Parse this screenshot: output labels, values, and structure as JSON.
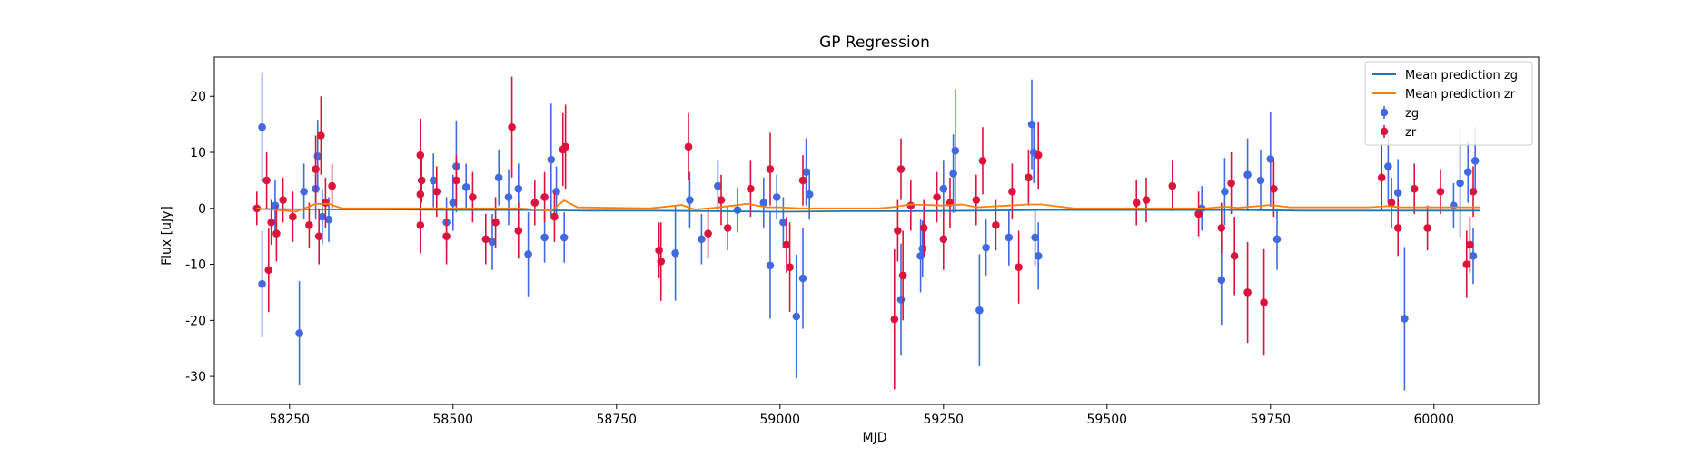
{
  "chart_data": {
    "type": "scatter",
    "title": "GP Regression",
    "xlabel": "MJD",
    "ylabel": "Flux [uJy]",
    "xlim": [
      58135,
      60160
    ],
    "ylim": [
      -35,
      27
    ],
    "x_ticks": [
      58250,
      58500,
      58750,
      59000,
      59250,
      59500,
      59750,
      60000
    ],
    "y_ticks": [
      -30,
      -20,
      -10,
      0,
      10,
      20
    ],
    "grid": false,
    "legend_position": "top-right",
    "series": [
      {
        "name": "Mean prediction zg",
        "kind": "line",
        "color": "#1f77b4",
        "x": [
          58200,
          58300,
          58400,
          58500,
          58600,
          58700,
          58800,
          58900,
          59000,
          59100,
          59200,
          59300,
          59400,
          59500,
          59600,
          59700,
          59800,
          59900,
          60000,
          60070
        ],
        "y": [
          -0.1,
          -0.2,
          -0.2,
          -0.3,
          -0.3,
          -0.4,
          -0.4,
          -0.5,
          -0.6,
          -0.5,
          -0.5,
          -0.4,
          -0.3,
          -0.3,
          -0.3,
          -0.3,
          -0.4,
          -0.4,
          -0.4,
          -0.4
        ]
      },
      {
        "name": "Mean prediction zr",
        "kind": "line",
        "color": "#ff7f0e",
        "x": [
          58200,
          58230,
          58260,
          58290,
          58310,
          58330,
          58400,
          58450,
          58500,
          58550,
          58600,
          58650,
          58670,
          58690,
          58800,
          58850,
          58870,
          58900,
          58950,
          58980,
          59000,
          59030,
          59050,
          59100,
          59150,
          59170,
          59200,
          59250,
          59280,
          59300,
          59350,
          59380,
          59400,
          59450,
          59500,
          59550,
          59600,
          59650,
          59680,
          59700,
          59750,
          59780,
          59800,
          59900,
          59930,
          59950,
          60000,
          60050,
          60070
        ],
        "y": [
          0.0,
          -0.3,
          -0.6,
          0.8,
          0.8,
          0.0,
          0.0,
          0.0,
          0.0,
          0.0,
          0.0,
          -0.4,
          1.4,
          0.2,
          0.0,
          0.6,
          -0.2,
          0.1,
          0.8,
          0.2,
          0.2,
          0.0,
          0.0,
          0.0,
          0.0,
          0.2,
          0.7,
          0.5,
          0.7,
          0.2,
          0.5,
          0.7,
          0.7,
          0.0,
          0.0,
          0.0,
          0.0,
          0.0,
          0.3,
          0.1,
          0.6,
          0.2,
          0.2,
          0.2,
          0.4,
          0.2,
          0.2,
          0.2,
          0.2
        ]
      },
      {
        "name": "zg",
        "kind": "errorbar",
        "color": "#4169e1",
        "points": [
          {
            "x": 58208,
            "y": 14.5,
            "err": 9.8
          },
          {
            "x": 58208,
            "y": -13.5,
            "err": 9.5
          },
          {
            "x": 58228,
            "y": 0.5,
            "err": 4.5
          },
          {
            "x": 58265,
            "y": -22.3,
            "err": 9.3
          },
          {
            "x": 58272,
            "y": 3.0,
            "err": 5.0
          },
          {
            "x": 58290,
            "y": 3.5,
            "err": 5.5
          },
          {
            "x": 58293,
            "y": 9.3,
            "err": 6.5
          },
          {
            "x": 58300,
            "y": -1.5,
            "err": 5.0
          },
          {
            "x": 58310,
            "y": -2.0,
            "err": 4.0
          },
          {
            "x": 58470,
            "y": 5.0,
            "err": 4.8
          },
          {
            "x": 58490,
            "y": -2.5,
            "err": 4.5
          },
          {
            "x": 58500,
            "y": 1.0,
            "err": 5.0
          },
          {
            "x": 58505,
            "y": 7.5,
            "err": 8.2
          },
          {
            "x": 58520,
            "y": 3.8,
            "err": 4.2
          },
          {
            "x": 58560,
            "y": -6.0,
            "err": 5.0
          },
          {
            "x": 58570,
            "y": 5.5,
            "err": 5.0
          },
          {
            "x": 58585,
            "y": 2.0,
            "err": 5.0
          },
          {
            "x": 58600,
            "y": 3.5,
            "err": 4.5
          },
          {
            "x": 58615,
            "y": -8.2,
            "err": 7.5
          },
          {
            "x": 58640,
            "y": -5.2,
            "err": 4.5
          },
          {
            "x": 58650,
            "y": 8.7,
            "err": 10.0
          },
          {
            "x": 58658,
            "y": 3.0,
            "err": 4.5
          },
          {
            "x": 58670,
            "y": -5.2,
            "err": 4.5
          },
          {
            "x": 58840,
            "y": -8.0,
            "err": 8.5
          },
          {
            "x": 58862,
            "y": 1.5,
            "err": 5.0
          },
          {
            "x": 58880,
            "y": -5.5,
            "err": 4.5
          },
          {
            "x": 58905,
            "y": 4.0,
            "err": 4.5
          },
          {
            "x": 58935,
            "y": -0.3,
            "err": 4.0
          },
          {
            "x": 58975,
            "y": 1.0,
            "err": 4.5
          },
          {
            "x": 58985,
            "y": -10.2,
            "err": 9.5
          },
          {
            "x": 58995,
            "y": 2.0,
            "err": 4.0
          },
          {
            "x": 59005,
            "y": -2.5,
            "err": 4.5
          },
          {
            "x": 59025,
            "y": -19.3,
            "err": 11.0
          },
          {
            "x": 59035,
            "y": -12.5,
            "err": 9.0
          },
          {
            "x": 59040,
            "y": 6.5,
            "err": 6.0
          },
          {
            "x": 59045,
            "y": 2.5,
            "err": 4.5
          },
          {
            "x": 59185,
            "y": -16.3,
            "err": 10.0
          },
          {
            "x": 59215,
            "y": -8.5,
            "err": 6.5
          },
          {
            "x": 59218,
            "y": -7.2,
            "err": 5.0
          },
          {
            "x": 59250,
            "y": 3.5,
            "err": 5.0
          },
          {
            "x": 59265,
            "y": 6.2,
            "err": 7.0
          },
          {
            "x": 59268,
            "y": 10.3,
            "err": 11.0
          },
          {
            "x": 59305,
            "y": -18.2,
            "err": 10.0
          },
          {
            "x": 59315,
            "y": -7.0,
            "err": 5.0
          },
          {
            "x": 59350,
            "y": -5.2,
            "err": 5.0
          },
          {
            "x": 59385,
            "y": 15.0,
            "err": 8.0
          },
          {
            "x": 59388,
            "y": 10.0,
            "err": 5.5
          },
          {
            "x": 59390,
            "y": -5.2,
            "err": 5.0
          },
          {
            "x": 59395,
            "y": -8.5,
            "err": 6.0
          },
          {
            "x": 59645,
            "y": 0.0,
            "err": 4.0
          },
          {
            "x": 59675,
            "y": -12.8,
            "err": 8.0
          },
          {
            "x": 59680,
            "y": 3.0,
            "err": 6.0
          },
          {
            "x": 59715,
            "y": 6.0,
            "err": 6.5
          },
          {
            "x": 59735,
            "y": 5.0,
            "err": 5.5
          },
          {
            "x": 59750,
            "y": 8.8,
            "err": 8.5
          },
          {
            "x": 59760,
            "y": -5.5,
            "err": 5.5
          },
          {
            "x": 59930,
            "y": 7.5,
            "err": 6.5
          },
          {
            "x": 59945,
            "y": 2.8,
            "err": 6.0
          },
          {
            "x": 59955,
            "y": -19.7,
            "err": 12.8
          },
          {
            "x": 60030,
            "y": 0.5,
            "err": 4.0
          },
          {
            "x": 60040,
            "y": 4.5,
            "err": 9.8
          },
          {
            "x": 60052,
            "y": 6.5,
            "err": 5.5
          },
          {
            "x": 60063,
            "y": 8.5,
            "err": 6.0
          },
          {
            "x": 60060,
            "y": -8.5,
            "err": 5.0
          }
        ]
      },
      {
        "name": "zr",
        "kind": "errorbar",
        "color": "#dc143c",
        "points": [
          {
            "x": 58200,
            "y": 0.0,
            "err": 3.0
          },
          {
            "x": 58215,
            "y": 5.0,
            "err": 5.0
          },
          {
            "x": 58218,
            "y": -11.0,
            "err": 7.5
          },
          {
            "x": 58222,
            "y": -2.5,
            "err": 4.0
          },
          {
            "x": 58230,
            "y": -4.5,
            "err": 5.0
          },
          {
            "x": 58240,
            "y": 1.5,
            "err": 4.0
          },
          {
            "x": 58255,
            "y": -1.5,
            "err": 4.5
          },
          {
            "x": 58280,
            "y": -3.0,
            "err": 4.0
          },
          {
            "x": 58290,
            "y": 7.0,
            "err": 6.0
          },
          {
            "x": 58295,
            "y": -5.0,
            "err": 5.0
          },
          {
            "x": 58298,
            "y": 13.0,
            "err": 7.0
          },
          {
            "x": 58305,
            "y": 1.0,
            "err": 4.5
          },
          {
            "x": 58315,
            "y": 4.0,
            "err": 4.0
          },
          {
            "x": 58450,
            "y": 9.5,
            "err": 6.5
          },
          {
            "x": 58450,
            "y": 2.5,
            "err": 5.0
          },
          {
            "x": 58450,
            "y": -3.0,
            "err": 5.0
          },
          {
            "x": 58452,
            "y": 5.0,
            "err": 4.0
          },
          {
            "x": 58475,
            "y": 3.0,
            "err": 4.5
          },
          {
            "x": 58490,
            "y": -5.0,
            "err": 5.0
          },
          {
            "x": 58505,
            "y": 5.0,
            "err": 4.5
          },
          {
            "x": 58530,
            "y": 2.0,
            "err": 4.5
          },
          {
            "x": 58550,
            "y": -5.5,
            "err": 4.5
          },
          {
            "x": 58565,
            "y": -2.5,
            "err": 4.5
          },
          {
            "x": 58590,
            "y": 14.5,
            "err": 9.0
          },
          {
            "x": 58600,
            "y": -4.0,
            "err": 5.0
          },
          {
            "x": 58625,
            "y": 1.0,
            "err": 4.0
          },
          {
            "x": 58640,
            "y": 2.0,
            "err": 4.5
          },
          {
            "x": 58655,
            "y": -1.5,
            "err": 4.5
          },
          {
            "x": 58668,
            "y": 10.5,
            "err": 6.5
          },
          {
            "x": 58672,
            "y": 11.0,
            "err": 7.5
          },
          {
            "x": 58815,
            "y": -7.5,
            "err": 5.0
          },
          {
            "x": 58818,
            "y": -9.5,
            "err": 7.0
          },
          {
            "x": 58860,
            "y": 11.0,
            "err": 6.0
          },
          {
            "x": 58890,
            "y": -4.5,
            "err": 4.5
          },
          {
            "x": 58910,
            "y": 1.5,
            "err": 4.5
          },
          {
            "x": 58920,
            "y": -3.5,
            "err": 4.0
          },
          {
            "x": 58955,
            "y": 3.5,
            "err": 5.0
          },
          {
            "x": 58985,
            "y": 7.0,
            "err": 6.5
          },
          {
            "x": 59010,
            "y": -6.5,
            "err": 5.0
          },
          {
            "x": 59015,
            "y": -10.5,
            "err": 8.0
          },
          {
            "x": 59035,
            "y": 5.0,
            "err": 4.5
          },
          {
            "x": 59175,
            "y": -19.8,
            "err": 12.5
          },
          {
            "x": 59180,
            "y": -4.0,
            "err": 5.5
          },
          {
            "x": 59185,
            "y": 7.0,
            "err": 5.5
          },
          {
            "x": 59188,
            "y": -12.0,
            "err": 8.0
          },
          {
            "x": 59200,
            "y": 0.5,
            "err": 4.5
          },
          {
            "x": 59220,
            "y": -3.5,
            "err": 5.0
          },
          {
            "x": 59240,
            "y": 2.0,
            "err": 4.5
          },
          {
            "x": 59250,
            "y": -5.5,
            "err": 5.5
          },
          {
            "x": 59260,
            "y": 1.0,
            "err": 4.5
          },
          {
            "x": 59300,
            "y": 1.5,
            "err": 4.5
          },
          {
            "x": 59310,
            "y": 8.5,
            "err": 6.0
          },
          {
            "x": 59330,
            "y": -3.0,
            "err": 4.5
          },
          {
            "x": 59355,
            "y": 3.0,
            "err": 5.0
          },
          {
            "x": 59365,
            "y": -10.5,
            "err": 6.5
          },
          {
            "x": 59380,
            "y": 5.5,
            "err": 5.0
          },
          {
            "x": 59395,
            "y": 9.5,
            "err": 6.0
          },
          {
            "x": 59545,
            "y": 1.0,
            "err": 4.0
          },
          {
            "x": 59560,
            "y": 1.5,
            "err": 4.0
          },
          {
            "x": 59600,
            "y": 4.0,
            "err": 4.5
          },
          {
            "x": 59640,
            "y": -1.0,
            "err": 4.0
          },
          {
            "x": 59675,
            "y": -3.5,
            "err": 4.5
          },
          {
            "x": 59690,
            "y": 4.5,
            "err": 5.5
          },
          {
            "x": 59695,
            "y": -8.5,
            "err": 7.0
          },
          {
            "x": 59715,
            "y": -15.0,
            "err": 9.0
          },
          {
            "x": 59740,
            "y": -16.8,
            "err": 9.5
          },
          {
            "x": 59755,
            "y": 3.5,
            "err": 5.0
          },
          {
            "x": 59920,
            "y": 5.5,
            "err": 6.0
          },
          {
            "x": 59935,
            "y": 1.0,
            "err": 4.5
          },
          {
            "x": 59945,
            "y": -3.5,
            "err": 5.0
          },
          {
            "x": 59970,
            "y": 3.5,
            "err": 4.5
          },
          {
            "x": 59990,
            "y": -3.5,
            "err": 4.0
          },
          {
            "x": 60010,
            "y": 3.0,
            "err": 4.0
          },
          {
            "x": 60050,
            "y": -10.0,
            "err": 6.0
          },
          {
            "x": 60055,
            "y": -6.5,
            "err": 5.0
          },
          {
            "x": 60060,
            "y": 3.0,
            "err": 4.5
          }
        ]
      }
    ]
  }
}
